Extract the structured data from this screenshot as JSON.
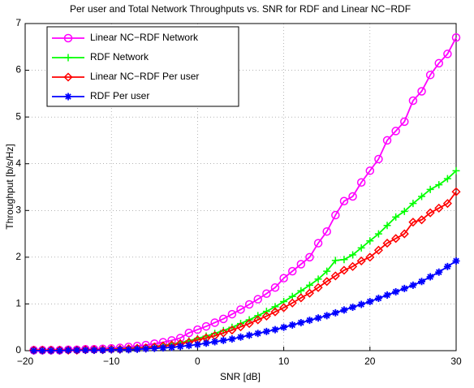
{
  "chart_data": {
    "type": "line",
    "title": "Per user and Total Network Throughputs vs. SNR for RDF and Linear NC−RDF",
    "x_label": "SNR [dB]",
    "y_label": "Throughput [b/s/Hz]",
    "x": [
      -19,
      -18,
      -17,
      -16,
      -15,
      -14,
      -13,
      -12,
      -11,
      -10,
      -9,
      -8,
      -7,
      -6,
      -5,
      -4,
      -3,
      -2,
      -1,
      0,
      1,
      2,
      3,
      4,
      5,
      6,
      7,
      8,
      9,
      10,
      11,
      12,
      13,
      14,
      15,
      16,
      17,
      18,
      19,
      20,
      21,
      22,
      23,
      24,
      25,
      26,
      27,
      28,
      29,
      30
    ],
    "series": [
      {
        "name": "Linear NC−RDF Network",
        "color": "#ff00ff",
        "marker": "o",
        "values": [
          0.01,
          0.01,
          0.01,
          0.01,
          0.02,
          0.02,
          0.03,
          0.03,
          0.04,
          0.05,
          0.06,
          0.08,
          0.1,
          0.12,
          0.15,
          0.18,
          0.22,
          0.27,
          0.38,
          0.45,
          0.52,
          0.6,
          0.68,
          0.78,
          0.88,
          0.99,
          1.1,
          1.22,
          1.35,
          1.55,
          1.7,
          1.85,
          2.0,
          2.3,
          2.55,
          2.9,
          3.2,
          3.3,
          3.6,
          3.85,
          4.1,
          4.5,
          4.7,
          4.9,
          5.35,
          5.55,
          5.9,
          6.15,
          6.35,
          6.7
        ]
      },
      {
        "name": "RDF Network",
        "color": "#00ff00",
        "marker": "+",
        "values": [
          0.01,
          0.01,
          0.01,
          0.01,
          0.01,
          0.01,
          0.02,
          0.02,
          0.02,
          0.03,
          0.04,
          0.05,
          0.06,
          0.07,
          0.09,
          0.11,
          0.14,
          0.17,
          0.21,
          0.26,
          0.31,
          0.37,
          0.43,
          0.5,
          0.58,
          0.66,
          0.75,
          0.84,
          0.94,
          1.05,
          1.16,
          1.28,
          1.4,
          1.53,
          1.7,
          1.93,
          1.95,
          2.05,
          2.2,
          2.35,
          2.5,
          2.68,
          2.86,
          2.98,
          3.15,
          3.3,
          3.45,
          3.55,
          3.68,
          3.85
        ]
      },
      {
        "name": "Linear NC−RDF Per user",
        "color": "#ff0000",
        "marker": "d",
        "values": [
          0.01,
          0.01,
          0.01,
          0.01,
          0.01,
          0.01,
          0.02,
          0.02,
          0.02,
          0.03,
          0.03,
          0.04,
          0.05,
          0.06,
          0.08,
          0.1,
          0.12,
          0.15,
          0.18,
          0.23,
          0.27,
          0.32,
          0.38,
          0.44,
          0.51,
          0.58,
          0.66,
          0.74,
          0.83,
          0.92,
          1.02,
          1.13,
          1.23,
          1.35,
          1.48,
          1.6,
          1.72,
          1.8,
          1.92,
          2.0,
          2.15,
          2.3,
          2.4,
          2.5,
          2.75,
          2.8,
          2.95,
          3.05,
          3.15,
          3.4
        ]
      },
      {
        "name": "RDF Per user",
        "color": "#0000ff",
        "marker": "*",
        "values": [
          0.0,
          0.0,
          0.0,
          0.0,
          0.01,
          0.01,
          0.01,
          0.01,
          0.01,
          0.02,
          0.02,
          0.02,
          0.03,
          0.04,
          0.05,
          0.06,
          0.07,
          0.09,
          0.11,
          0.13,
          0.16,
          0.19,
          0.22,
          0.25,
          0.29,
          0.33,
          0.37,
          0.41,
          0.45,
          0.5,
          0.55,
          0.6,
          0.65,
          0.7,
          0.75,
          0.81,
          0.87,
          0.93,
          0.99,
          1.05,
          1.12,
          1.19,
          1.26,
          1.33,
          1.4,
          1.48,
          1.58,
          1.68,
          1.8,
          1.92
        ]
      }
    ],
    "xlim": [
      -20,
      30
    ],
    "xticks": [
      {
        "value": -20,
        "label": "−20"
      },
      {
        "value": -10,
        "label": "−10"
      },
      0,
      10,
      20,
      30
    ],
    "ylim": [
      0,
      7
    ],
    "yticks": [
      0,
      1,
      2,
      3,
      4,
      5,
      6,
      7
    ],
    "grid": true,
    "legend": "upper left"
  }
}
